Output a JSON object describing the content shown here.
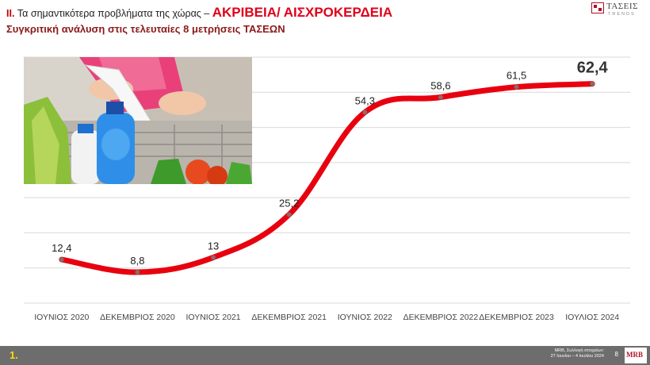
{
  "header": {
    "roman": "II.",
    "text": "Τα σημαντικότερα προβλήματα της χώρας –",
    "topic": "ΑΚΡΙΒΕΙΑ/ ΑΙΣΧΡΟΚΕΡΔΕΙΑ",
    "subtitle": "Συγκριτική ανάλυση στις τελευταίες 8 μετρήσεις ΤΑΣΕΩΝ"
  },
  "logo": {
    "name": "ΤΑΣΕΙΣ",
    "sub": "TRENDS"
  },
  "colors": {
    "line": "#e8000f",
    "accent": "#e0001a",
    "grid": "#d9d9d9",
    "footer": "#6d6d6d"
  },
  "chart_data": {
    "type": "line",
    "categories": [
      "ΙΟΥΝΙΟΣ 2020",
      "ΔΕΚΕΜΒΡΙΟΣ 2020",
      "ΙΟΥΝΙΟΣ 2021",
      "ΔΕΚΕΜΒΡΙΟΣ 2021",
      "ΙΟΥΝΙΟΣ 2022",
      "ΔΕΚΕΜΒΡΙΟΣ 2022",
      "ΔΕΚΕΜΒΡΙΟΣ 2023",
      "ΙΟΥΛΙΟΣ 2024"
    ],
    "series": [
      {
        "values": [
          12.4,
          8.8,
          13,
          25.2,
          54.3,
          58.6,
          61.5,
          62.4
        ]
      }
    ],
    "labels": [
      "12,4",
      "8,8",
      "13",
      "25,2",
      "54,3",
      "58,6",
      "61,5",
      "62,4"
    ],
    "ylim": [
      0,
      70
    ],
    "grid": true,
    "legend": "none"
  },
  "footer": {
    "number": "1.",
    "note_line1": "MRB, Συλλογή στοιχείων:",
    "note_line2": "27 Ιουνίου – 4 Ιουλίου 2024",
    "page": "8",
    "mrb": "MRB"
  }
}
